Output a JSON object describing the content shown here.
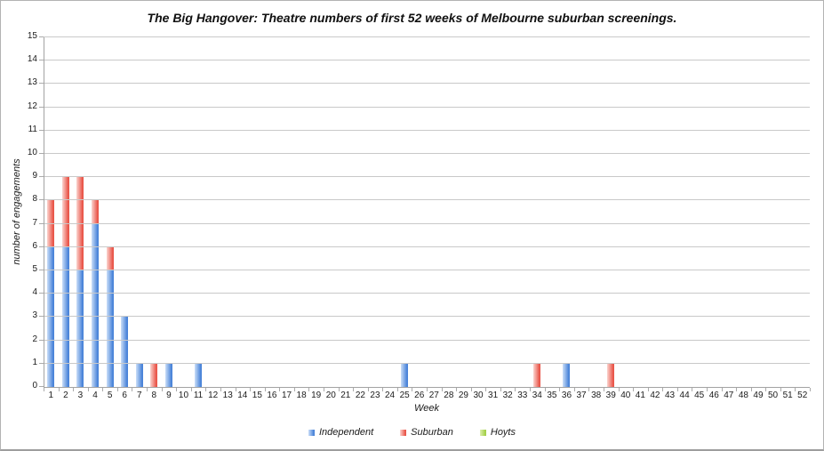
{
  "chart_data": {
    "type": "bar",
    "stacked": true,
    "title": "The Big Hangover: Theatre numbers of first 52 weeks of Melbourne suburban screenings.",
    "xlabel": "Week",
    "ylabel": "number of engagements",
    "ylim": [
      0,
      15
    ],
    "ytick_step": 1,
    "grid": true,
    "legend_position": "bottom",
    "categories": [
      1,
      2,
      3,
      4,
      5,
      6,
      7,
      8,
      9,
      10,
      11,
      12,
      13,
      14,
      15,
      16,
      17,
      18,
      19,
      20,
      21,
      22,
      23,
      24,
      25,
      26,
      27,
      28,
      29,
      30,
      31,
      32,
      33,
      34,
      35,
      36,
      37,
      38,
      39,
      40,
      41,
      42,
      43,
      44,
      45,
      46,
      47,
      48,
      49,
      50,
      51,
      52
    ],
    "series": [
      {
        "name": "Independent",
        "color": "#4a84d9",
        "color_light": "#cadef8",
        "values": [
          6,
          6,
          5,
          7,
          5,
          3,
          1,
          0,
          1,
          0,
          1,
          0,
          0,
          0,
          0,
          0,
          0,
          0,
          0,
          0,
          0,
          0,
          0,
          0,
          1,
          0,
          0,
          0,
          0,
          0,
          0,
          0,
          0,
          0,
          0,
          1,
          0,
          0,
          0,
          0,
          0,
          0,
          0,
          0,
          0,
          0,
          0,
          0,
          0,
          0,
          0,
          0
        ]
      },
      {
        "name": "Suburban",
        "color": "#e9564a",
        "color_light": "#fbd4cf",
        "values": [
          2,
          3,
          4,
          1,
          1,
          0,
          0,
          1,
          0,
          0,
          0,
          0,
          0,
          0,
          0,
          0,
          0,
          0,
          0,
          0,
          0,
          0,
          0,
          0,
          0,
          0,
          0,
          0,
          0,
          0,
          0,
          0,
          0,
          1,
          0,
          0,
          0,
          0,
          1,
          0,
          0,
          0,
          0,
          0,
          0,
          0,
          0,
          0,
          0,
          0,
          0,
          0
        ]
      },
      {
        "name": "Hoyts",
        "color": "#a4d04a",
        "color_light": "#ddefae",
        "values": [
          0,
          0,
          0,
          0,
          0,
          0,
          0,
          0,
          0,
          0,
          0,
          0,
          0,
          0,
          0,
          0,
          0,
          0,
          0,
          0,
          0,
          0,
          0,
          0,
          0,
          0,
          0,
          0,
          0,
          0,
          0,
          0,
          0,
          0,
          0,
          0,
          0,
          0,
          0,
          0,
          0,
          0,
          0,
          0,
          0,
          0,
          0,
          0,
          0,
          0,
          0,
          0
        ]
      }
    ]
  },
  "colors": {
    "gridline": "#c9c9c9",
    "axis": "#a3a3a3",
    "tick": "#ababab",
    "text": "#1a1a1a",
    "background": "#ffffff"
  }
}
